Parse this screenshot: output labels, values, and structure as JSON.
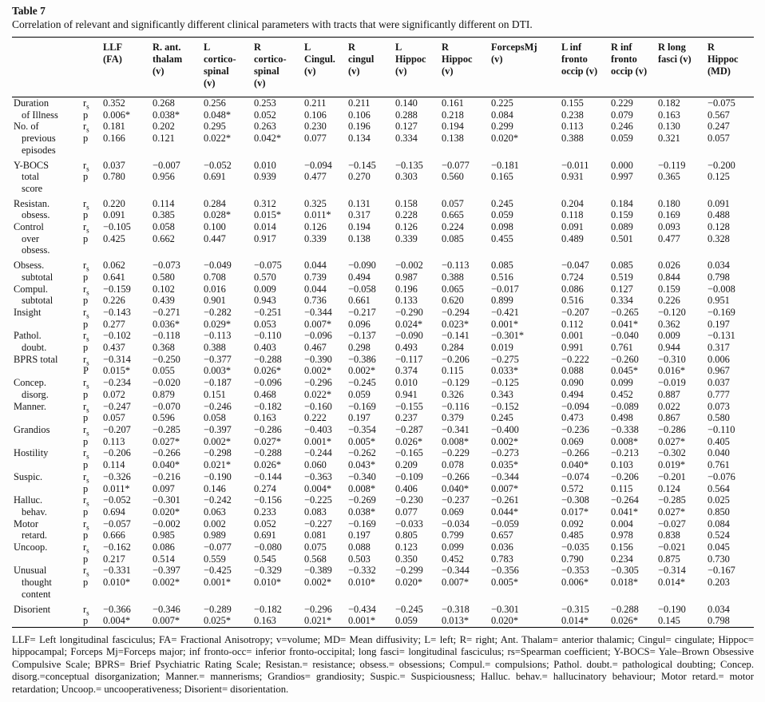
{
  "table": {
    "title": "Table 7",
    "caption": "Correlation of relevant and significantly different clinical parameters with tracts that were significantly different on DTI.",
    "columns": [
      "LLF\n(FA)",
      "R. ant.\nthalam\n(v)",
      "L\ncortico-\nspinal\n(v)",
      "R\ncortico-\nspinal\n(v)",
      "L\nCingul.\n(v)",
      "R\ncingul\n(v)",
      "L\nHippoc\n(v)",
      "R\nHippoc\n(v)",
      "ForcepsMj\n(v)",
      "L inf\nfronto\noccip (v)",
      "R inf\nfronto\noccip (v)",
      "R long\nfasci (v)",
      "R\nHippoc\n(MD)"
    ],
    "rows": [
      {
        "label_lines": [
          "Duration",
          "of Illness"
        ],
        "stat_labels": [
          "rs",
          "p"
        ],
        "rs": [
          "0.352",
          "0.268",
          "0.256",
          "0.253",
          "0.211",
          "0.211",
          "0.140",
          "0.161",
          "0.225",
          "0.155",
          "0.229",
          "0.182",
          "−0.075"
        ],
        "p": [
          "0.006*",
          "0.038*",
          "0.048*",
          "0.052",
          "0.106",
          "0.106",
          "0.288",
          "0.218",
          "0.084",
          "0.238",
          "0.079",
          "0.163",
          "0.567"
        ]
      },
      {
        "label_lines": [
          "No. of",
          "previous",
          "episodes"
        ],
        "stat_labels": [
          "rs",
          "p"
        ],
        "rs": [
          "0.181",
          "0.202",
          "0.295",
          "0.263",
          "0.230",
          "0.196",
          "0.127",
          "0.194",
          "0.299",
          "0.113",
          "0.246",
          "0.130",
          "0.247"
        ],
        "p": [
          "0.166",
          "0.121",
          "0.022*",
          "0.042*",
          "0.077",
          "0.134",
          "0.334",
          "0.138",
          "0.020*",
          "0.388",
          "0.059",
          "0.321",
          "0.057"
        ]
      },
      {
        "label_lines": [
          "Y-BOCS",
          "total",
          "score"
        ],
        "stat_labels": [
          "rs",
          "p"
        ],
        "rs": [
          "0.037",
          "−0.007",
          "−0.052",
          "0.010",
          "−0.094",
          "−0.145",
          "−0.135",
          "−0.077",
          "−0.181",
          "−0.011",
          "0.000",
          "−0.119",
          "−0.200"
        ],
        "p": [
          "0.780",
          "0.956",
          "0.691",
          "0.939",
          "0.477",
          "0.270",
          "0.303",
          "0.560",
          "0.165",
          "0.931",
          "0.997",
          "0.365",
          "0.125"
        ]
      },
      {
        "label_lines": [
          "Resistan.",
          "obsess."
        ],
        "stat_labels": [
          "rs",
          "p"
        ],
        "rs": [
          "0.220",
          "0.114",
          "0.284",
          "0.312",
          "0.325",
          "0.131",
          "0.158",
          "0.057",
          "0.245",
          "0.204",
          "0.184",
          "0.180",
          "0.091"
        ],
        "p": [
          "0.091",
          "0.385",
          "0.028*",
          "0.015*",
          "0.011*",
          "0.317",
          "0.228",
          "0.665",
          "0.059",
          "0.118",
          "0.159",
          "0.169",
          "0.488"
        ]
      },
      {
        "label_lines": [
          "Control",
          "over",
          "obsess."
        ],
        "stat_labels": [
          "rs",
          "p"
        ],
        "rs": [
          "−0.105",
          "0.058",
          "0.100",
          "0.014",
          "0.126",
          "0.194",
          "0.126",
          "0.224",
          "0.098",
          "0.091",
          "0.089",
          "0.093",
          "0.128"
        ],
        "p": [
          "0.425",
          "0.662",
          "0.447",
          "0.917",
          "0.339",
          "0.138",
          "0.339",
          "0.085",
          "0.455",
          "0.489",
          "0.501",
          "0.477",
          "0.328"
        ]
      },
      {
        "label_lines": [
          "Obsess.",
          "subtotal"
        ],
        "stat_labels": [
          "rs",
          "p"
        ],
        "rs": [
          "0.062",
          "−0.073",
          "−0.049",
          "−0.075",
          "0.044",
          "−0.090",
          "−0.002",
          "−0.113",
          "0.085",
          "−0.047",
          "0.085",
          "0.026",
          "0.034"
        ],
        "p": [
          "0.641",
          "0.580",
          "0.708",
          "0.570",
          "0.739",
          "0.494",
          "0.987",
          "0.388",
          "0.516",
          "0.724",
          "0.519",
          "0.844",
          "0.798"
        ]
      },
      {
        "label_lines": [
          "Compul.",
          "subtotal"
        ],
        "stat_labels": [
          "rs",
          "p"
        ],
        "rs": [
          "−0.159",
          "0.102",
          "0.016",
          "0.009",
          "0.044",
          "−0.058",
          "0.196",
          "0.065",
          "−0.017",
          "0.086",
          "0.127",
          "0.159",
          "−0.008"
        ],
        "p": [
          "0.226",
          "0.439",
          "0.901",
          "0.943",
          "0.736",
          "0.661",
          "0.133",
          "0.620",
          "0.899",
          "0.516",
          "0.334",
          "0.226",
          "0.951"
        ]
      },
      {
        "label_lines": [
          "Insight"
        ],
        "stat_labels": [
          "rs",
          "p"
        ],
        "rs": [
          "−0.143",
          "−0.271",
          "−0.282",
          "−0.251",
          "−0.344",
          "−0.217",
          "−0.290",
          "−0.294",
          "−0.421",
          "−0.207",
          "−0.265",
          "−0.120",
          "−0.169"
        ],
        "p": [
          "0.277",
          "0.036*",
          "0.029*",
          "0.053",
          "0.007*",
          "0.096",
          "0.024*",
          "0.023*",
          "0.001*",
          "0.112",
          "0.041*",
          "0.362",
          "0.197"
        ]
      },
      {
        "label_lines": [
          "Pathol.",
          "doubt."
        ],
        "stat_labels": [
          "rs",
          "p"
        ],
        "rs": [
          "−0.102",
          "−0.118",
          "−0.113",
          "−0.110",
          "−0.096",
          "−0.137",
          "−0.090",
          "−0.141",
          "−0.301*",
          "0.001",
          "−0.040",
          "0.009",
          "−0.131"
        ],
        "p": [
          "0.437",
          "0.368",
          "0.388",
          "0.403",
          "0.467",
          "0.298",
          "0.493",
          "0.284",
          "0.019",
          "0.991",
          "0.761",
          "0.944",
          "0.317"
        ]
      },
      {
        "label_lines": [
          "BPRS total"
        ],
        "stat_labels": [
          "rs",
          "P"
        ],
        "rs": [
          "−0.314",
          "−0.250",
          "−0.377",
          "−0.288",
          "−0.390",
          "−0.386",
          "−0.117",
          "−0.206",
          "−0.275",
          "−0.222",
          "−0.260",
          "−0.310",
          "0.006"
        ],
        "p": [
          "0.015*",
          "0.055",
          "0.003*",
          "0.026*",
          "0.002*",
          "0.002*",
          "0.374",
          "0.115",
          "0.033*",
          "0.088",
          "0.045*",
          "0.016*",
          "0.967"
        ]
      },
      {
        "label_lines": [
          "Concep.",
          "disorg."
        ],
        "stat_labels": [
          "rs",
          "p"
        ],
        "rs": [
          "−0.234",
          "−0.020",
          "−0.187",
          "−0.096",
          "−0.296",
          "−0.245",
          "0.010",
          "−0.129",
          "−0.125",
          "0.090",
          "0.099",
          "−0.019",
          "0.037"
        ],
        "p": [
          "0.072",
          "0.879",
          "0.151",
          "0.468",
          "0.022*",
          "0.059",
          "0.941",
          "0.326",
          "0.343",
          "0.494",
          "0.452",
          "0.887",
          "0.777"
        ]
      },
      {
        "label_lines": [
          "Manner."
        ],
        "stat_labels": [
          "rs",
          "p"
        ],
        "rs": [
          "−0.247",
          "−0.070",
          "−0.246",
          "−0.182",
          "−0.160",
          "−0.169",
          "−0.155",
          "−0.116",
          "−0.152",
          "−0.094",
          "−0.089",
          "0.022",
          "0.073"
        ],
        "p": [
          "0.057",
          "0.596",
          "0.058",
          "0.163",
          "0.222",
          "0.197",
          "0.237",
          "0.379",
          "0.245",
          "0.473",
          "0.498",
          "0.867",
          "0.580"
        ]
      },
      {
        "label_lines": [
          "Grandios"
        ],
        "stat_labels": [
          "rs",
          "p"
        ],
        "rs": [
          "−0.207",
          "−0.285",
          "−0.397",
          "−0.286",
          "−0.403",
          "−0.354",
          "−0.287",
          "−0.341",
          "−0.400",
          "−0.236",
          "−0.338",
          "−0.286",
          "−0.110"
        ],
        "p": [
          "0.113",
          "0.027*",
          "0.002*",
          "0.027*",
          "0.001*",
          "0.005*",
          "0.026*",
          "0.008*",
          "0.002*",
          "0.069",
          "0.008*",
          "0.027*",
          "0.405"
        ]
      },
      {
        "label_lines": [
          "Hostility"
        ],
        "stat_labels": [
          "rs",
          "p"
        ],
        "rs": [
          "−0.206",
          "−0.266",
          "−0.298",
          "−0.288",
          "−0.244",
          "−0.262",
          "−0.165",
          "−0.229",
          "−0.273",
          "−0.266",
          "−0.213",
          "−0.302",
          "0.040"
        ],
        "p": [
          "0.114",
          "0.040*",
          "0.021*",
          "0.026*",
          "0.060",
          "0.043*",
          "0.209",
          "0.078",
          "0.035*",
          "0.040*",
          "0.103",
          "0.019*",
          "0.761"
        ]
      },
      {
        "label_lines": [
          "Suspic."
        ],
        "stat_labels": [
          "rs",
          "p"
        ],
        "rs": [
          "−0.326",
          "−0.216",
          "−0.190",
          "−0.144",
          "−0.363",
          "−0.340",
          "−0.109",
          "−0.266",
          "−0.344",
          "−0.074",
          "−0.206",
          "−0.201",
          "−0.076"
        ],
        "p": [
          "0.011*",
          "0.097",
          "0.146",
          "0.274",
          "0.004*",
          "0.008*",
          "0.406",
          "0.040*",
          "0.007*",
          "0.572",
          "0.115",
          "0.124",
          "0.564"
        ]
      },
      {
        "label_lines": [
          "Halluc.",
          "behav."
        ],
        "stat_labels": [
          "rs",
          "p"
        ],
        "rs": [
          "−0.052",
          "−0.301",
          "−0.242",
          "−0.156",
          "−0.225",
          "−0.269",
          "−0.230",
          "−0.237",
          "−0.261",
          "−0.308",
          "−0.264",
          "−0.285",
          "0.025"
        ],
        "p": [
          "0.694",
          "0.020*",
          "0.063",
          "0.233",
          "0.083",
          "0.038*",
          "0.077",
          "0.069",
          "0.044*",
          "0.017*",
          "0.041*",
          "0.027*",
          "0.850"
        ]
      },
      {
        "label_lines": [
          "Motor",
          "retard."
        ],
        "stat_labels": [
          "rs",
          "p"
        ],
        "rs": [
          "−0.057",
          "−0.002",
          "0.002",
          "0.052",
          "−0.227",
          "−0.169",
          "−0.033",
          "−0.034",
          "−0.059",
          "0.092",
          "0.004",
          "−0.027",
          "0.084"
        ],
        "p": [
          "0.666",
          "0.985",
          "0.989",
          "0.691",
          "0.081",
          "0.197",
          "0.805",
          "0.799",
          "0.657",
          "0.485",
          "0.978",
          "0.838",
          "0.524"
        ]
      },
      {
        "label_lines": [
          "Uncoop."
        ],
        "stat_labels": [
          "rs",
          "p"
        ],
        "rs": [
          "−0.162",
          "0.086",
          "−0.077",
          "−0.080",
          "0.075",
          "0.088",
          "0.123",
          "0.099",
          "0.036",
          "−0.035",
          "0.156",
          "−0.021",
          "0.045"
        ],
        "p": [
          "0.217",
          "0.514",
          "0.559",
          "0.545",
          "0.568",
          "0.503",
          "0.350",
          "0.452",
          "0.783",
          "0.790",
          "0.234",
          "0.875",
          "0.730"
        ]
      },
      {
        "label_lines": [
          "Unusual",
          "thought",
          "content"
        ],
        "stat_labels": [
          "rs",
          "p"
        ],
        "rs": [
          "−0.331",
          "−0.397",
          "−0.425",
          "−0.329",
          "−0.389",
          "−0.332",
          "−0.299",
          "−0.344",
          "−0.356",
          "−0.353",
          "−0.305",
          "−0.314",
          "−0.167"
        ],
        "p": [
          "0.010*",
          "0.002*",
          "0.001*",
          "0.010*",
          "0.002*",
          "0.010*",
          "0.020*",
          "0.007*",
          "0.005*",
          "0.006*",
          "0.018*",
          "0.014*",
          "0.203"
        ]
      },
      {
        "label_lines": [
          "Disorient"
        ],
        "stat_labels": [
          "rs",
          "p"
        ],
        "rs": [
          "−0.366",
          "−0.346",
          "−0.289",
          "−0.182",
          "−0.296",
          "−0.434",
          "−0.245",
          "−0.318",
          "−0.301",
          "−0.315",
          "−0.288",
          "−0.190",
          "0.034"
        ],
        "p": [
          "0.004*",
          "0.007*",
          "0.025*",
          "0.163",
          "0.021*",
          "0.001*",
          "0.059",
          "0.013*",
          "0.020*",
          "0.014*",
          "0.026*",
          "0.145",
          "0.798"
        ]
      }
    ],
    "footnote": "LLF= Left longitudinal fasciculus; FA= Fractional Anisotropy; v=volume; MD= Mean diffusivity; L= left; R= right; Ant. Thalam= anterior thalamic; Cingul= cingulate; Hippoc= hippocampal; Forceps Mj=Forceps major; inf fronto-occ= inferior fronto-occipital; long fasci= longitudinal fasciculus; rs=Spearman coefficient; Y-BOCS= Yale–Brown Obsessive Compulsive Scale; BPRS= Brief Psychiatric Rating Scale; Resistan.= resistance; obsess.= obsessions; Compul.= compulsions; Pathol. doubt.= pathological doubting; Concep. disorg.=conceptual disorganization; Manner.= mannerisms; Grandios= grandiosity; Suspic.= Suspiciousness; Halluc. behav.= hallucinatory behaviour; Motor retard.= motor retardation; Uncoop.= uncooperativeness; Disorient= disorientation."
  }
}
